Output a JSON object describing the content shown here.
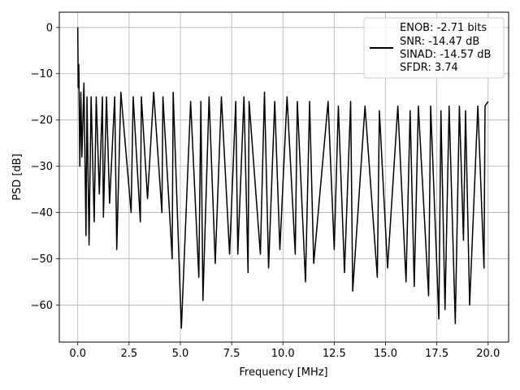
{
  "chart_data": {
    "type": "line",
    "title": "",
    "xlabel": "Frequency [MHz]",
    "ylabel": "PSD [dB]",
    "xlim": [
      -0.9,
      21.0
    ],
    "ylim": [
      -68.0,
      3.3
    ],
    "xticks": [
      0.0,
      2.5,
      5.0,
      7.5,
      10.0,
      12.5,
      15.0,
      17.5,
      20.0
    ],
    "xtick_labels": [
      "0.0",
      "2.5",
      "5.0",
      "7.5",
      "10.0",
      "12.5",
      "15.0",
      "17.5",
      "20.0"
    ],
    "yticks": [
      0,
      -10,
      -20,
      -30,
      -40,
      -50,
      -60
    ],
    "ytick_labels": [
      "0",
      "−10",
      "−20",
      "−30",
      "−40",
      "−50",
      "−60"
    ],
    "grid": true,
    "legend_position": "top-right",
    "series_color": "#000000",
    "legend_lines": [
      "ENOB: -2.71 bits",
      "SNR: -14.47 dB",
      "SINAD: -14.57 dB",
      "SFDR: 3.74"
    ],
    "series": [
      {
        "name": "ENOB: -2.71 bits",
        "x": [
          0.0,
          0.02,
          0.05,
          0.1,
          0.15,
          0.2,
          0.3,
          0.4,
          0.45,
          0.55,
          0.65,
          0.8,
          0.9,
          1.05,
          1.2,
          1.25,
          1.4,
          1.55,
          1.8,
          1.9,
          2.1,
          2.6,
          2.7,
          3.05,
          3.1,
          3.4,
          3.7,
          4.1,
          4.15,
          4.6,
          4.65,
          5.05,
          5.5,
          5.9,
          6.0,
          6.1,
          6.4,
          6.7,
          7.0,
          7.4,
          7.7,
          7.8,
          8.1,
          8.3,
          8.35,
          8.9,
          9.1,
          9.3,
          9.6,
          9.85,
          10.2,
          10.6,
          10.7,
          11.1,
          11.3,
          11.5,
          12.2,
          12.5,
          12.7,
          13.0,
          13.3,
          13.4,
          14.0,
          14.6,
          14.7,
          15.1,
          15.6,
          16.0,
          16.2,
          16.4,
          16.6,
          17.1,
          17.2,
          17.6,
          17.7,
          17.9,
          18.1,
          18.4,
          18.6,
          18.8,
          18.9,
          19.1,
          19.5,
          19.8,
          19.85,
          20.0
        ],
        "y": [
          0,
          -13,
          -8,
          -30,
          -14,
          -28,
          -12,
          -45,
          -15,
          -47,
          -15,
          -42,
          -15,
          -36,
          -15,
          -41,
          -15,
          -38,
          -15,
          -48,
          -14,
          -40,
          -15,
          -42,
          -15,
          -37,
          -14,
          -40,
          -15,
          -50,
          -14,
          -65,
          -16,
          -54,
          -16,
          -59,
          -15,
          -51,
          -15,
          -49,
          -16,
          -49,
          -15,
          -53,
          -16,
          -49,
          -14,
          -52,
          -16,
          -48,
          -15,
          -49,
          -16,
          -55,
          -16,
          -51,
          -16,
          -48,
          -17,
          -53,
          -16,
          -57,
          -17,
          -54,
          -18,
          -52,
          -17,
          -55,
          -18,
          -56,
          -17,
          -58,
          -17,
          -63,
          -18,
          -61,
          -17,
          -64,
          -17,
          -46,
          -18,
          -60,
          -17,
          -52,
          -17,
          -16
        ]
      }
    ]
  }
}
